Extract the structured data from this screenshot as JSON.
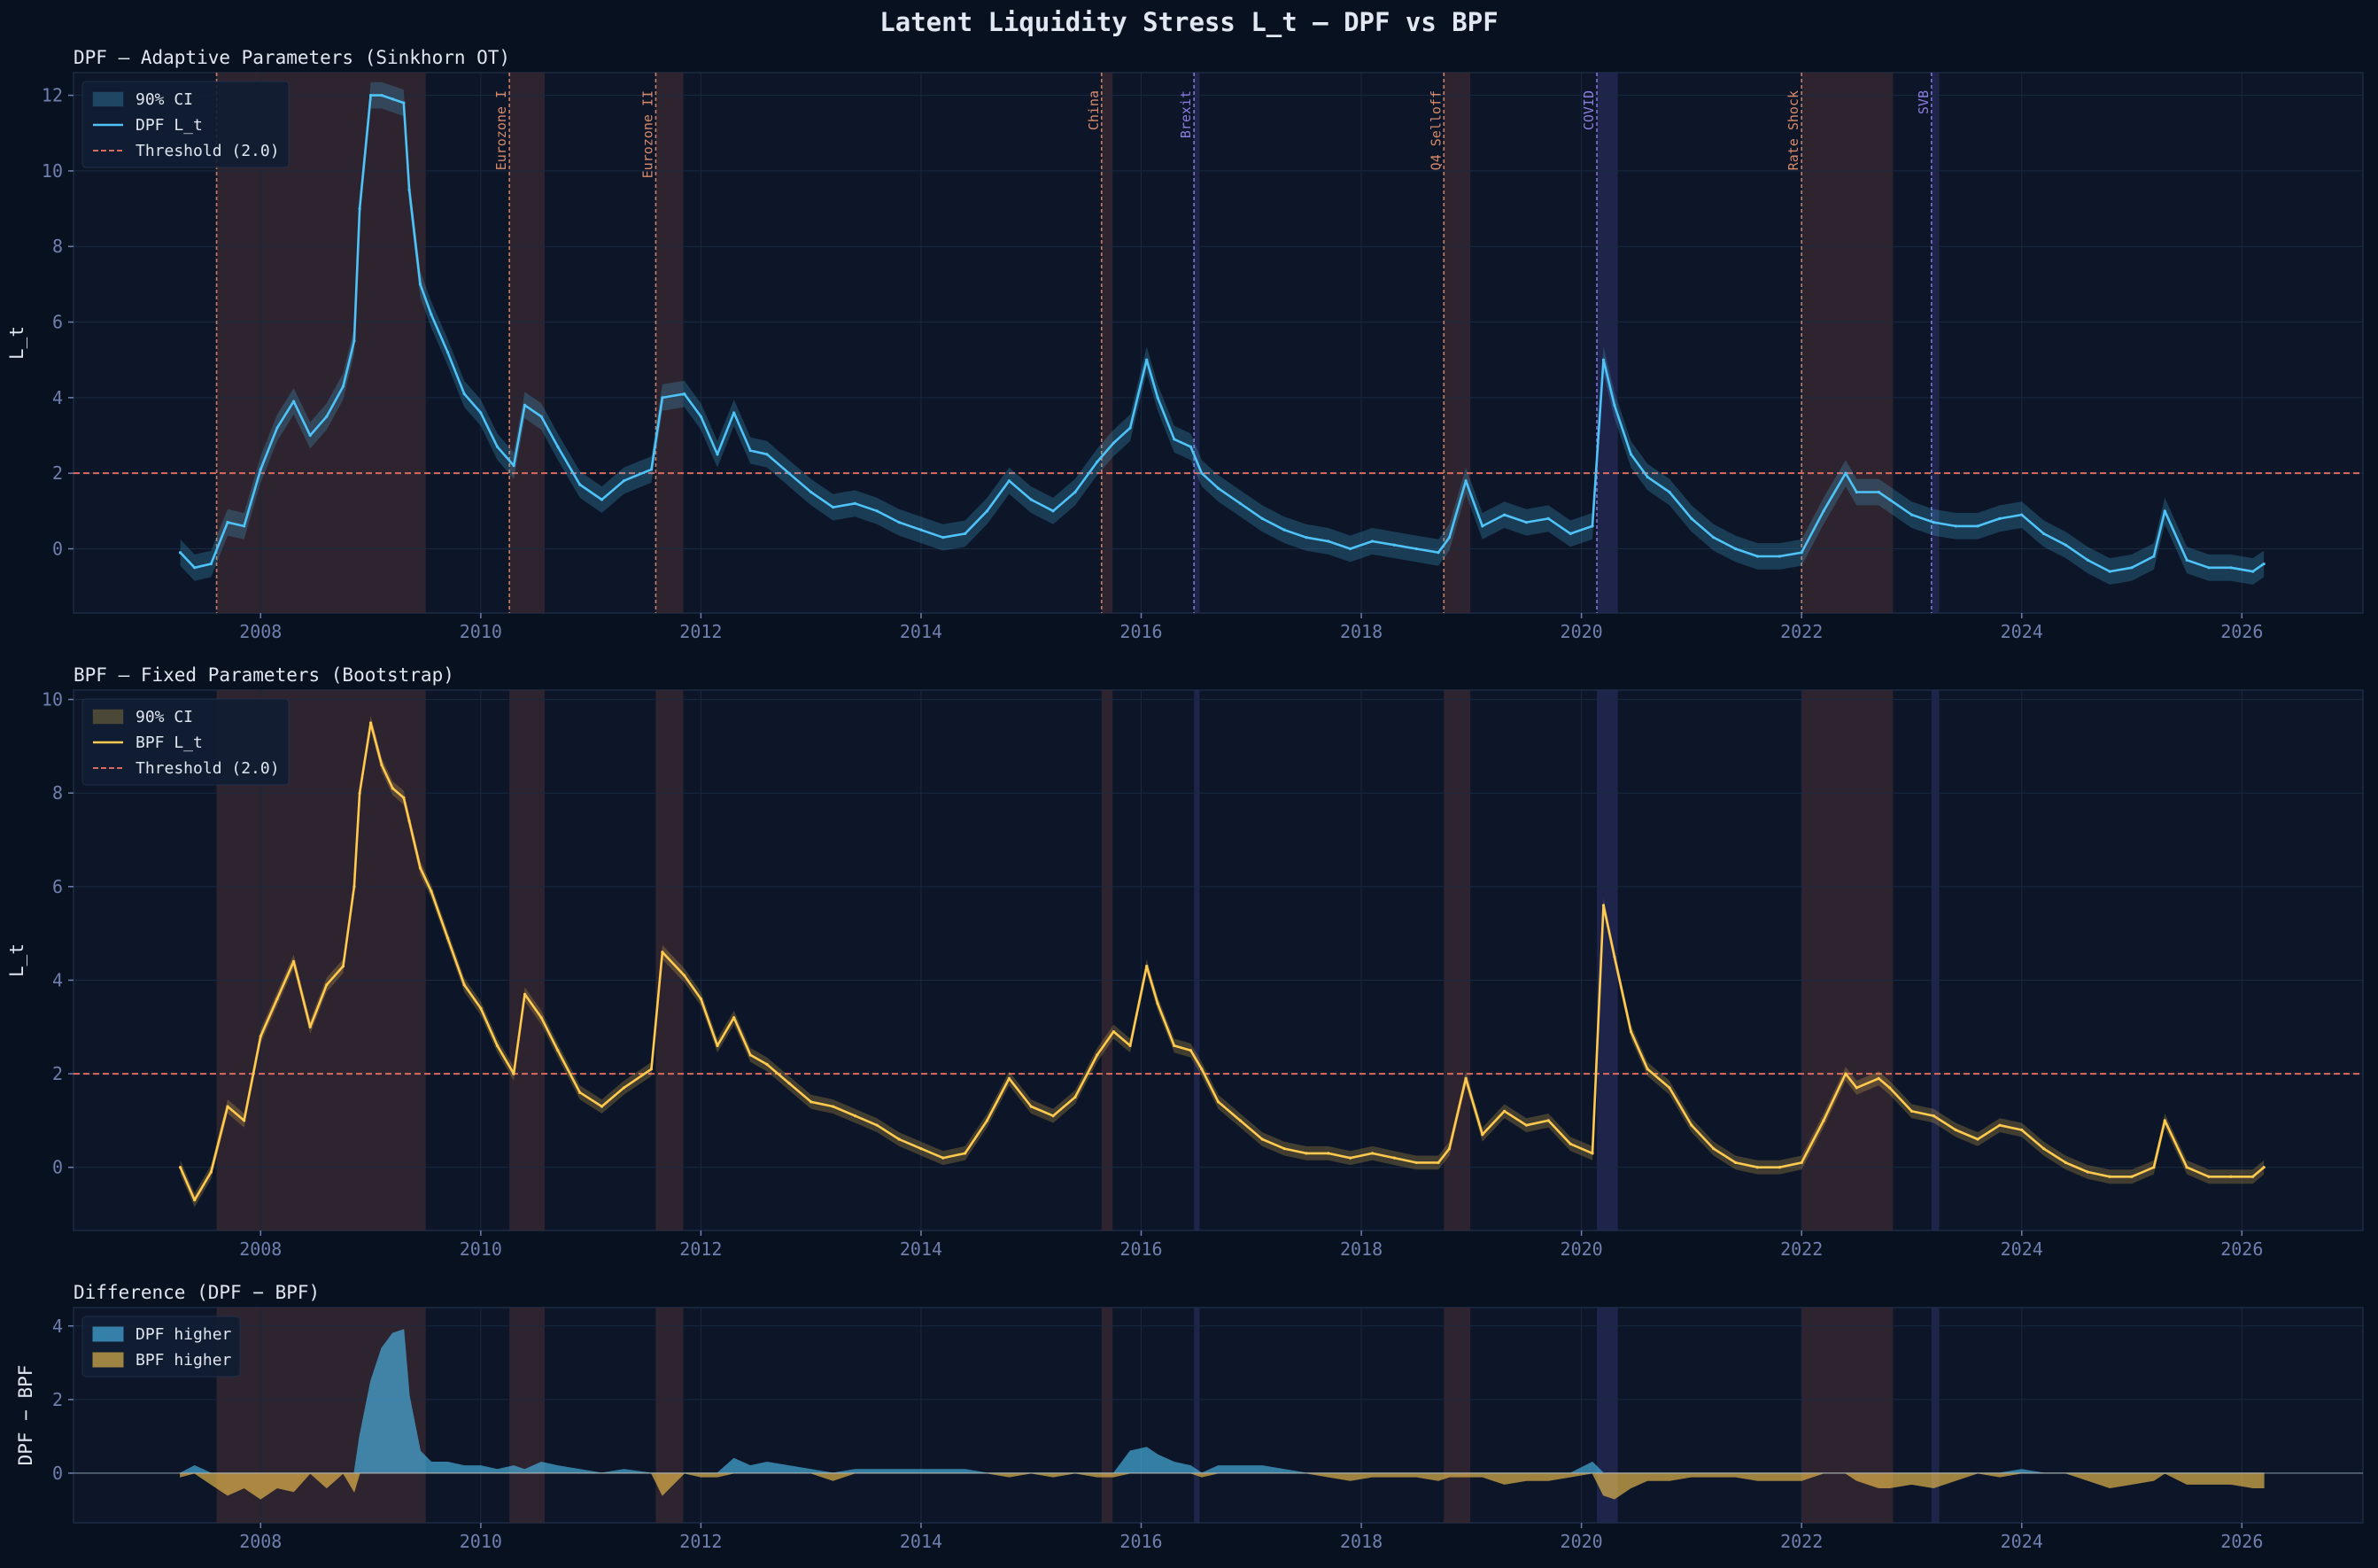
{
  "figure": {
    "title": "Latent Liquidity Stress  L_t  —  DPF vs BPF"
  },
  "colors": {
    "figure_bg": "#08111f",
    "axes_bg": "#0c1628",
    "grid": "#1a2840",
    "tick_text": "#6f7fae",
    "text": "#dfe6f0",
    "dpf": "#4fc3f7",
    "bpf": "#ffca4f",
    "threshold": "#d96b5e",
    "band_default": "#3a2a32",
    "band_blue": "#262b55",
    "label_orange": "#d98a6a",
    "label_purple": "#8d7de0"
  },
  "events": [
    {
      "label": "",
      "start": 2007.6,
      "end": 2009.5,
      "kind": "default"
    },
    {
      "label": "Eurozone I",
      "start": 2010.26,
      "end": 2010.58,
      "kind": "default"
    },
    {
      "label": "Eurozone II",
      "start": 2011.59,
      "end": 2011.84,
      "kind": "default"
    },
    {
      "label": "China",
      "start": 2015.64,
      "end": 2015.74,
      "kind": "default"
    },
    {
      "label": "Brexit",
      "start": 2016.48,
      "end": 2016.53,
      "kind": "blue"
    },
    {
      "label": "Q4 Selloff",
      "start": 2018.75,
      "end": 2018.99,
      "kind": "default"
    },
    {
      "label": "COVID",
      "start": 2020.14,
      "end": 2020.33,
      "kind": "blue"
    },
    {
      "label": "Rate Shock",
      "start": 2022.0,
      "end": 2022.83,
      "kind": "default"
    },
    {
      "label": "SVB",
      "start": 2023.18,
      "end": 2023.25,
      "kind": "blue"
    }
  ],
  "chart_data": [
    {
      "id": "dpf",
      "type": "line",
      "title": "DPF — Adaptive Parameters (Sinkhorn OT)",
      "ylabel": "L_t",
      "xlim": [
        2006.3,
        2027.1
      ],
      "ylim": [
        -1.7,
        12.6
      ],
      "xticks": [
        2008,
        2010,
        2012,
        2014,
        2016,
        2018,
        2020,
        2022,
        2024,
        2026
      ],
      "yticks": [
        0,
        2,
        4,
        6,
        8,
        10,
        12
      ],
      "threshold": 2.0,
      "grid": true,
      "legend_position": "top-left",
      "legend": [
        "90% CI",
        "DPF L_t",
        "Threshold (2.0)"
      ],
      "event_labels_shown": true,
      "ci_halfwidth": 0.35,
      "series": {
        "x": [
          2007.27,
          2007.4,
          2007.55,
          2007.7,
          2007.85,
          2008.0,
          2008.15,
          2008.3,
          2008.45,
          2008.6,
          2008.75,
          2008.85,
          2008.9,
          2009.0,
          2009.1,
          2009.2,
          2009.3,
          2009.35,
          2009.45,
          2009.55,
          2009.7,
          2009.85,
          2010.0,
          2010.15,
          2010.3,
          2010.4,
          2010.55,
          2010.7,
          2010.9,
          2011.1,
          2011.3,
          2011.55,
          2011.65,
          2011.85,
          2012.0,
          2012.15,
          2012.3,
          2012.45,
          2012.6,
          2012.8,
          2013.0,
          2013.2,
          2013.4,
          2013.6,
          2013.8,
          2014.0,
          2014.2,
          2014.4,
          2014.6,
          2014.8,
          2015.0,
          2015.2,
          2015.4,
          2015.6,
          2015.75,
          2015.9,
          2016.05,
          2016.15,
          2016.3,
          2016.45,
          2016.55,
          2016.7,
          2016.9,
          2017.1,
          2017.3,
          2017.5,
          2017.7,
          2017.9,
          2018.1,
          2018.3,
          2018.5,
          2018.7,
          2018.8,
          2018.95,
          2019.1,
          2019.3,
          2019.5,
          2019.7,
          2019.9,
          2020.1,
          2020.2,
          2020.3,
          2020.45,
          2020.6,
          2020.8,
          2021.0,
          2021.2,
          2021.4,
          2021.6,
          2021.8,
          2022.0,
          2022.2,
          2022.4,
          2022.5,
          2022.7,
          2022.8,
          2023.0,
          2023.2,
          2023.4,
          2023.6,
          2023.8,
          2024.0,
          2024.2,
          2024.4,
          2024.6,
          2024.8,
          2025.0,
          2025.2,
          2025.3,
          2025.5,
          2025.7,
          2025.9,
          2026.1,
          2026.2
        ],
        "y": [
          -0.1,
          -0.5,
          -0.4,
          0.7,
          0.6,
          2.1,
          3.2,
          3.9,
          3.0,
          3.5,
          4.3,
          5.5,
          9.0,
          12.0,
          12.0,
          11.9,
          11.8,
          9.5,
          7.0,
          6.2,
          5.2,
          4.1,
          3.6,
          2.7,
          2.2,
          3.8,
          3.5,
          2.7,
          1.7,
          1.3,
          1.8,
          2.1,
          4.0,
          4.1,
          3.5,
          2.5,
          3.6,
          2.6,
          2.5,
          2.0,
          1.5,
          1.1,
          1.2,
          1.0,
          0.7,
          0.5,
          0.3,
          0.4,
          1.0,
          1.8,
          1.3,
          1.0,
          1.5,
          2.3,
          2.8,
          3.2,
          5.0,
          4.0,
          2.9,
          2.7,
          2.0,
          1.6,
          1.2,
          0.8,
          0.5,
          0.3,
          0.2,
          0.0,
          0.2,
          0.1,
          0.0,
          -0.1,
          0.3,
          1.8,
          0.6,
          0.9,
          0.7,
          0.8,
          0.4,
          0.6,
          5.0,
          3.8,
          2.5,
          1.9,
          1.5,
          0.8,
          0.3,
          0.0,
          -0.2,
          -0.2,
          -0.1,
          1.0,
          2.0,
          1.5,
          1.5,
          1.3,
          0.9,
          0.7,
          0.6,
          0.6,
          0.8,
          0.9,
          0.4,
          0.1,
          -0.3,
          -0.6,
          -0.5,
          -0.2,
          1.0,
          -0.3,
          -0.5,
          -0.5,
          -0.6,
          -0.4
        ]
      }
    },
    {
      "id": "bpf",
      "type": "line",
      "title": "BPF — Fixed Parameters (Bootstrap)",
      "ylabel": "L_t",
      "xlim": [
        2006.3,
        2027.1
      ],
      "ylim": [
        -1.35,
        10.2
      ],
      "xticks": [
        2008,
        2010,
        2012,
        2014,
        2016,
        2018,
        2020,
        2022,
        2024,
        2026
      ],
      "yticks": [
        0,
        2,
        4,
        6,
        8,
        10
      ],
      "threshold": 2.0,
      "grid": true,
      "legend_position": "top-left",
      "legend": [
        "90% CI",
        "BPF L_t",
        "Threshold (2.0)"
      ],
      "event_labels_shown": false,
      "ci_halfwidth": 0.15,
      "series": {
        "x": [
          2007.27,
          2007.4,
          2007.55,
          2007.7,
          2007.85,
          2008.0,
          2008.15,
          2008.3,
          2008.45,
          2008.6,
          2008.75,
          2008.85,
          2008.9,
          2009.0,
          2009.1,
          2009.2,
          2009.3,
          2009.35,
          2009.45,
          2009.55,
          2009.7,
          2009.85,
          2010.0,
          2010.15,
          2010.3,
          2010.4,
          2010.55,
          2010.7,
          2010.9,
          2011.1,
          2011.3,
          2011.55,
          2011.65,
          2011.85,
          2012.0,
          2012.15,
          2012.3,
          2012.45,
          2012.6,
          2012.8,
          2013.0,
          2013.2,
          2013.4,
          2013.6,
          2013.8,
          2014.0,
          2014.2,
          2014.4,
          2014.6,
          2014.8,
          2015.0,
          2015.2,
          2015.4,
          2015.6,
          2015.75,
          2015.9,
          2016.05,
          2016.15,
          2016.3,
          2016.45,
          2016.55,
          2016.7,
          2016.9,
          2017.1,
          2017.3,
          2017.5,
          2017.7,
          2017.9,
          2018.1,
          2018.3,
          2018.5,
          2018.7,
          2018.8,
          2018.95,
          2019.1,
          2019.3,
          2019.5,
          2019.7,
          2019.9,
          2020.1,
          2020.2,
          2020.3,
          2020.45,
          2020.6,
          2020.8,
          2021.0,
          2021.2,
          2021.4,
          2021.6,
          2021.8,
          2022.0,
          2022.2,
          2022.4,
          2022.5,
          2022.7,
          2022.8,
          2023.0,
          2023.2,
          2023.4,
          2023.6,
          2023.8,
          2024.0,
          2024.2,
          2024.4,
          2024.6,
          2024.8,
          2025.0,
          2025.2,
          2025.3,
          2025.5,
          2025.7,
          2025.9,
          2026.1,
          2026.2
        ],
        "y": [
          0.0,
          -0.7,
          -0.1,
          1.3,
          1.0,
          2.8,
          3.6,
          4.4,
          3.0,
          3.9,
          4.3,
          6.0,
          8.0,
          9.5,
          8.6,
          8.1,
          7.9,
          7.4,
          6.4,
          5.9,
          4.9,
          3.9,
          3.4,
          2.6,
          2.0,
          3.7,
          3.2,
          2.5,
          1.6,
          1.3,
          1.7,
          2.1,
          4.6,
          4.1,
          3.6,
          2.6,
          3.2,
          2.4,
          2.2,
          1.8,
          1.4,
          1.3,
          1.1,
          0.9,
          0.6,
          0.4,
          0.2,
          0.3,
          1.0,
          1.9,
          1.3,
          1.1,
          1.5,
          2.4,
          2.9,
          2.6,
          4.3,
          3.5,
          2.6,
          2.5,
          2.1,
          1.4,
          1.0,
          0.6,
          0.4,
          0.3,
          0.3,
          0.2,
          0.3,
          0.2,
          0.1,
          0.1,
          0.4,
          1.9,
          0.7,
          1.2,
          0.9,
          1.0,
          0.5,
          0.3,
          5.6,
          4.5,
          2.9,
          2.1,
          1.7,
          0.9,
          0.4,
          0.1,
          0.0,
          0.0,
          0.1,
          1.0,
          2.0,
          1.7,
          1.9,
          1.7,
          1.2,
          1.1,
          0.8,
          0.6,
          0.9,
          0.8,
          0.4,
          0.1,
          -0.1,
          -0.2,
          -0.2,
          0.0,
          1.0,
          0.0,
          -0.2,
          -0.2,
          -0.2,
          0.0
        ]
      }
    },
    {
      "id": "diff",
      "type": "area",
      "title": "Difference (DPF − BPF)",
      "ylabel": "DPF − BPF",
      "xlim": [
        2006.3,
        2027.1
      ],
      "ylim": [
        -1.35,
        4.5
      ],
      "xticks": [
        2008,
        2010,
        2012,
        2014,
        2016,
        2018,
        2020,
        2022,
        2024,
        2026
      ],
      "yticks": [
        0,
        2,
        4
      ],
      "grid": true,
      "legend_position": "top-left",
      "legend": [
        "DPF higher",
        "BPF higher"
      ],
      "event_labels_shown": false
    }
  ]
}
